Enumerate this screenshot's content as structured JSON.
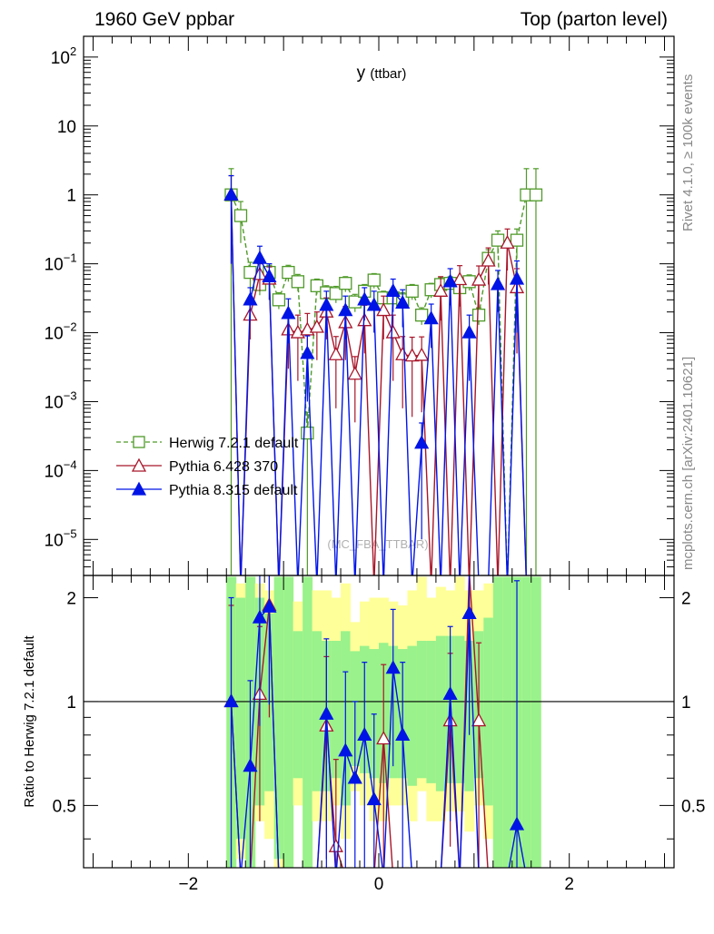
{
  "header": {
    "left_title": "1960 GeV ppbar",
    "right_title": "Top (parton level)"
  },
  "side_labels": {
    "rivet": "Rivet 4.1.0, ≥ 100k events",
    "mcplots": "mcplots.cern.ch [arXiv:2401.10621]"
  },
  "chart_data": {
    "type": "line",
    "title": "y (ttbar)",
    "title_main": "y",
    "title_sub": "(ttbar)",
    "watermark": "(MC_FBA_TTBAR)",
    "xlabel": "",
    "ylabel_ratio": "Ratio to Herwig 7.2.1 default",
    "xlim": [
      -3.1,
      3.1
    ],
    "ylim_main": [
      3e-06,
      200
    ],
    "ylim_ratio": [
      0.33,
      2.32
    ],
    "yscale_main": "log",
    "x_ticks": [
      "−2",
      "0",
      "2"
    ],
    "x_tick_values": [
      -2,
      0,
      2
    ],
    "y_ticks_main": [
      {
        "value": 100,
        "label": "10",
        "exp": "2"
      },
      {
        "value": 10,
        "label": "10",
        "exp": ""
      },
      {
        "value": 1,
        "label": "1",
        "exp": ""
      },
      {
        "value": 0.1,
        "label": "10",
        "exp": "−1"
      },
      {
        "value": 0.01,
        "label": "10",
        "exp": "−2"
      },
      {
        "value": 0.001,
        "label": "10",
        "exp": "−3"
      },
      {
        "value": 0.0001,
        "label": "10",
        "exp": "−4"
      },
      {
        "value": 1e-05,
        "label": "10",
        "exp": "−5"
      }
    ],
    "y_ticks_ratio": [
      {
        "value": 2,
        "label": "2"
      },
      {
        "value": 1,
        "label": "1"
      },
      {
        "value": 0.5,
        "label": "0.5"
      }
    ],
    "legend_position": "lower-left",
    "x": [
      -1.55,
      -1.45,
      -1.35,
      -1.25,
      -1.15,
      -1.05,
      -0.95,
      -0.85,
      -0.75,
      -0.65,
      -0.55,
      -0.45,
      -0.35,
      -0.25,
      -0.15,
      -0.05,
      0.05,
      0.15,
      0.25,
      0.35,
      0.45,
      0.55,
      0.65,
      0.75,
      0.85,
      0.95,
      1.05,
      1.15,
      1.25,
      1.35,
      1.45,
      1.55,
      1.65
    ],
    "series": [
      {
        "name": "Herwig 7.2.1 default",
        "color": "#4f9a28",
        "marker": "open-square",
        "dashed": true,
        "values": [
          1.0,
          0.5,
          0.075,
          0.05,
          0.075,
          0.03,
          0.075,
          0.055,
          0.00035,
          0.048,
          0.038,
          0.037,
          0.052,
          0.028,
          0.04,
          0.058,
          0.032,
          0.032,
          0.03,
          0.04,
          0.018,
          0.042,
          0.05,
          0.052,
          0.045,
          0.055,
          0.018,
          0.12,
          0.22,
          0.0,
          0.22,
          1.0,
          1.0
        ],
        "errors": [
          1.4,
          0.3,
          0.03,
          0.015,
          0.02,
          0.008,
          0.02,
          0.015,
          0.00035,
          0.012,
          0.01,
          0.01,
          0.013,
          0.008,
          0.01,
          0.014,
          0.008,
          0.008,
          0.008,
          0.01,
          0.005,
          0.01,
          0.013,
          0.013,
          0.012,
          0.014,
          0.005,
          0.04,
          0.08,
          0.0,
          0.1,
          1.4,
          1.4
        ]
      },
      {
        "name": "Pythia 6.428 370",
        "color": "#a8162a",
        "marker": "open-triangle",
        "dashed": false,
        "values": [
          1.0,
          0.0,
          0.018,
          0.07,
          0.06,
          0.0,
          0.011,
          0.01,
          0.011,
          0.012,
          0.02,
          0.0048,
          0.014,
          0.0025,
          0.015,
          0.0,
          0.021,
          0.01,
          0.0048,
          0.0046,
          0.0047,
          0.0,
          0.04,
          0.0,
          0.059,
          0.0,
          0.058,
          0.11,
          0.0,
          0.2,
          0.045,
          0.0,
          0.0
        ],
        "errors": [
          0.9,
          0.0,
          0.01,
          0.03,
          0.03,
          0.0,
          0.008,
          0.008,
          0.008,
          0.008,
          0.012,
          0.004,
          0.01,
          0.002,
          0.01,
          0.0,
          0.013,
          0.008,
          0.004,
          0.004,
          0.004,
          0.0,
          0.025,
          0.0,
          0.035,
          0.0,
          0.035,
          0.06,
          0.0,
          0.12,
          0.04,
          0.0,
          0.0
        ]
      },
      {
        "name": "Pythia 8.315 default",
        "color": "#0014e6",
        "marker": "filled-triangle",
        "dashed": false,
        "values": [
          1.0,
          0.0,
          0.03,
          0.12,
          0.065,
          0.0,
          0.019,
          0.0,
          0.005,
          0.0,
          0.025,
          0.0,
          0.021,
          0.0,
          0.03,
          0.025,
          0.0,
          0.04,
          0.027,
          0.0,
          0.00025,
          0.016,
          0.0,
          0.055,
          0.0,
          0.01,
          0.0,
          0.0,
          0.05,
          0.0,
          0.06,
          0.0,
          0.0
        ],
        "errors": [
          0.9,
          0.0,
          0.015,
          0.06,
          0.035,
          0.0,
          0.012,
          0.0,
          0.004,
          0.0,
          0.015,
          0.0,
          0.013,
          0.0,
          0.015,
          0.015,
          0.0,
          0.02,
          0.015,
          0.0,
          0.00024,
          0.01,
          0.0,
          0.03,
          0.0,
          0.008,
          0.0,
          0.0,
          0.03,
          0.0,
          0.05,
          0.0,
          0.0
        ]
      }
    ],
    "ratio_band": {
      "stat_color": "#99f28c",
      "total_color": "#ffff99",
      "stat_lo": [
        0.3,
        0.4,
        0.33,
        0.5,
        0.55,
        0.35,
        0.33,
        0.6,
        0.33,
        0.55,
        0.55,
        0.6,
        0.5,
        0.65,
        0.62,
        0.6,
        0.58,
        0.6,
        0.6,
        0.57,
        0.6,
        0.58,
        0.55,
        0.58,
        0.58,
        0.55,
        0.6,
        0.5,
        0.33,
        0.33,
        0.33,
        0.33,
        0.33
      ],
      "stat_hi": [
        2.3,
        2.0,
        2.3,
        2.0,
        1.8,
        2.3,
        2.3,
        1.6,
        2.3,
        1.6,
        1.5,
        1.5,
        1.6,
        1.4,
        1.45,
        1.42,
        1.48,
        1.45,
        1.42,
        1.45,
        1.5,
        1.5,
        1.55,
        1.55,
        1.55,
        1.5,
        1.6,
        1.75,
        2.3,
        2.3,
        2.3,
        2.3,
        2.3
      ],
      "total_lo": [
        0.3,
        0.35,
        0.33,
        0.45,
        0.4,
        0.33,
        0.33,
        0.5,
        0.33,
        0.45,
        0.45,
        0.5,
        0.4,
        0.55,
        0.5,
        0.45,
        0.45,
        0.5,
        0.5,
        0.45,
        0.55,
        0.45,
        0.45,
        0.48,
        0.48,
        0.42,
        0.5,
        0.4,
        0.33,
        0.33,
        0.33,
        0.33,
        0.33
      ],
      "total_hi": [
        2.3,
        2.2,
        2.3,
        2.2,
        2.1,
        2.3,
        2.3,
        1.95,
        2.3,
        2.1,
        2.1,
        2.0,
        2.2,
        1.7,
        1.95,
        2.0,
        2.0,
        1.95,
        1.9,
        2.1,
        2.3,
        2.0,
        2.15,
        2.1,
        2.3,
        2.1,
        2.1,
        2.2,
        2.3,
        2.3,
        2.3,
        2.3,
        2.3
      ]
    },
    "ratio_series": [
      {
        "name": "Pythia 6.428 370",
        "values": [
          1.0,
          0.0,
          0.0,
          1.05,
          1.9,
          0.0,
          0.0,
          0.0,
          0.0,
          0.0,
          0.85,
          0.38,
          0.0,
          0.0,
          0.0,
          0.0,
          0.78,
          0.0,
          0.0,
          0.0,
          0.0,
          0.0,
          0.0,
          0.88,
          0.0,
          2.5,
          0.88,
          0.0,
          0.0,
          0.0,
          0.0,
          0.0,
          0.0
        ],
        "errors": [
          0.9,
          0,
          0,
          0.6,
          1.0,
          0,
          0,
          0,
          0,
          0,
          0.5,
          0.3,
          0,
          0,
          0,
          0,
          0.5,
          0,
          0,
          0,
          0,
          0,
          0,
          0.5,
          0,
          1.5,
          0.6,
          0,
          0,
          0,
          0,
          0,
          0
        ]
      },
      {
        "name": "Pythia 8.315 default",
        "values": [
          1.0,
          0.0,
          0.65,
          1.75,
          1.88,
          0.0,
          0.0,
          0.0,
          0.0,
          0.0,
          0.92,
          0.0,
          0.72,
          0.6,
          0.8,
          0.52,
          0.0,
          1.25,
          0.8,
          0.0,
          0.0,
          0.0,
          0.0,
          1.05,
          0.0,
          1.8,
          0.0,
          0.0,
          0.0,
          0.0,
          0.44,
          0.0,
          0.0
        ],
        "errors": [
          1.0,
          0,
          0.5,
          0.9,
          0.9,
          0,
          0,
          0,
          0,
          0,
          0.6,
          0,
          0.5,
          0.4,
          0.5,
          0.4,
          0,
          0.6,
          0.5,
          0,
          0,
          0,
          0,
          0.6,
          0,
          1.0,
          0,
          0,
          0,
          0,
          1.8,
          0,
          0
        ]
      }
    ]
  }
}
